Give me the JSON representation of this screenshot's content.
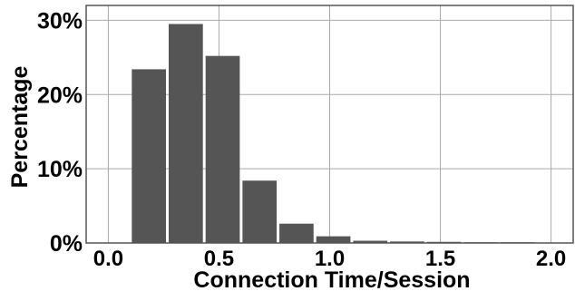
{
  "chart_data": {
    "type": "bar",
    "xlabel": "Connection Time/Session",
    "ylabel": "Percentage",
    "xlim": [
      -0.1,
      2.1
    ],
    "ylim": [
      0,
      32
    ],
    "x_ticks": [
      {
        "value": 0.0,
        "label": "0.0"
      },
      {
        "value": 0.5,
        "label": "0.5"
      },
      {
        "value": 1.0,
        "label": "1.0"
      },
      {
        "value": 1.5,
        "label": "1.5"
      },
      {
        "value": 2.0,
        "label": "2.0"
      }
    ],
    "y_ticks": [
      {
        "value": 0,
        "label": "0%"
      },
      {
        "value": 10,
        "label": "10%"
      },
      {
        "value": 20,
        "label": "20%"
      },
      {
        "value": 30,
        "label": "30%"
      }
    ],
    "grid": true,
    "bin_width": 0.1667,
    "bins": [
      {
        "start": 0.1,
        "value": 23.4
      },
      {
        "start": 0.2667,
        "value": 29.5
      },
      {
        "start": 0.4333,
        "value": 25.2
      },
      {
        "start": 0.6,
        "value": 8.4
      },
      {
        "start": 0.7667,
        "value": 2.6
      },
      {
        "start": 0.9333,
        "value": 0.9
      },
      {
        "start": 1.1,
        "value": 0.3
      },
      {
        "start": 1.2667,
        "value": 0.2
      },
      {
        "start": 1.4333,
        "value": 0.15
      },
      {
        "start": 1.6,
        "value": 0.1
      },
      {
        "start": 1.7667,
        "value": 0.1
      }
    ],
    "colors": {
      "bar": "#555555",
      "grid": "#a9a9a9",
      "axis": "#555555"
    }
  }
}
